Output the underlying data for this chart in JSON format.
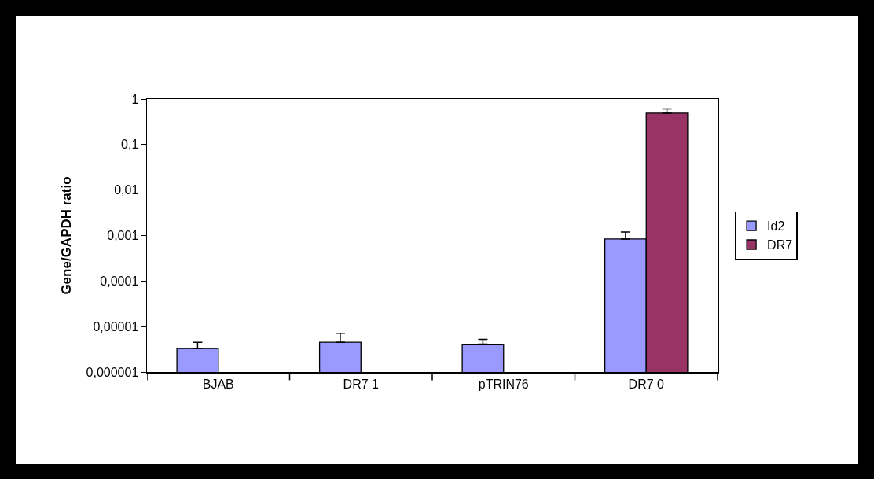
{
  "chart_data": {
    "type": "bar",
    "ylabel": "Gene/GAPDH ratio",
    "categories": [
      "BJAB",
      "DR7 1",
      "pTRIN76",
      "DR7 0"
    ],
    "series": [
      {
        "name": "Id2",
        "color": "#9999ff",
        "values": [
          3.3e-06,
          4.5e-06,
          4.1e-06,
          0.00084
        ],
        "errors": [
          [
            3.3e-06,
            4.5e-06
          ],
          [
            4.5e-06,
            7.1e-06
          ],
          [
            4.1e-06,
            5.2e-06
          ],
          [
            0.00084,
            0.0012
          ]
        ]
      },
      {
        "name": "DR7",
        "color": "#993366",
        "values": [
          null,
          null,
          null,
          0.49
        ],
        "errors": [
          null,
          null,
          null,
          [
            0.49,
            0.61
          ]
        ]
      }
    ],
    "log": "y",
    "ylim": [
      1e-06,
      1
    ],
    "yticks": [
      {
        "value": 1e-06,
        "label": "0,000001"
      },
      {
        "value": 1e-05,
        "label": "0,00001"
      },
      {
        "value": 0.0001,
        "label": "0,0001"
      },
      {
        "value": 0.001,
        "label": "0,001"
      },
      {
        "value": 0.01,
        "label": "0,01"
      },
      {
        "value": 0.1,
        "label": "0,1"
      },
      1
    ],
    "grid": false,
    "legend": "right"
  }
}
